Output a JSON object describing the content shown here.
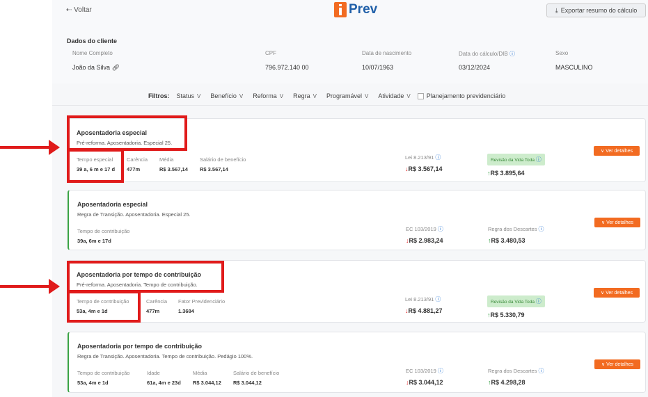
{
  "header": {
    "back_label": "Voltar",
    "logo_text": "Prev",
    "export_label": "Exportar resumo do cálculo"
  },
  "client": {
    "section_title": "Dados do cliente",
    "fields": [
      {
        "label": "Nome Completo",
        "value": "João da Silva"
      },
      {
        "label": "CPF",
        "value": "796.972.140 00"
      },
      {
        "label": "Data de nascimento",
        "value": "10/07/1963"
      },
      {
        "label": "Data do cálculo/DIB",
        "value": "03/12/2024"
      },
      {
        "label": "Sexo",
        "value": "MASCULINO"
      }
    ]
  },
  "filters": {
    "label": "Filtros:",
    "items": [
      "Status",
      "Benefício",
      "Reforma",
      "Regra",
      "Programável",
      "Atividade"
    ],
    "checkbox_label": "Planejamento previdenciário",
    "checkbox_checked": false
  },
  "cards": [
    {
      "title": "Aposentadoria especial",
      "subtitle": "Pré-reforma. Aposentadoria. Especial 25.",
      "fields": [
        {
          "label": "Tempo especial",
          "value": "39 a, 6 m e 17 d"
        },
        {
          "label": "Carência",
          "value": "477m"
        },
        {
          "label": "Média",
          "value": "R$ 3.567,14"
        },
        {
          "label": "Salário de benefício",
          "value": "R$ 3.567,14"
        }
      ],
      "rule1_label": "Lei 8.213/91",
      "rule1_value": "R$ 3.567,14",
      "rule2_label": "Revisão da Vida Toda",
      "rule2_value": "R$ 3.895,64",
      "button": "Ver detalhes"
    },
    {
      "title": "Aposentadoria especial",
      "subtitle": "Regra de Transição. Aposentadoria. Especial 25.",
      "fields": [
        {
          "label": "Tempo de contribuição",
          "value": "39a, 6m e 17d"
        }
      ],
      "rule1_label": "EC 103/2019",
      "rule1_value": "R$ 2.983,24",
      "rule2_label": "Regra dos Descartes",
      "rule2_value": "R$ 3.480,53",
      "button": "Ver detalhes"
    },
    {
      "title": "Aposentadoria por tempo de contribuição",
      "subtitle": "Pré-reforma. Aposentadoria. Tempo de contribuição.",
      "fields": [
        {
          "label": "Tempo de contribuição",
          "value": "53a, 4m e 1d"
        },
        {
          "label": "Carência",
          "value": "477m"
        },
        {
          "label": "Fator Previdenciário",
          "value": "1.3684"
        }
      ],
      "rule1_label": "Lei 8.213/91",
      "rule1_value": "R$ 4.881,27",
      "rule2_label": "Revisão da Vida Toda",
      "rule2_value": "R$ 5.330,79",
      "button": "Ver detalhes"
    },
    {
      "title": "Aposentadoria por tempo de contribuição",
      "subtitle": "Regra de Transição. Aposentadoria. Tempo de contribuição. Pedágio 100%.",
      "fields": [
        {
          "label": "Tempo de contribuição",
          "value": "53a, 4m e 1d"
        },
        {
          "label": "Idade",
          "value": "61a, 4m e 23d"
        },
        {
          "label": "Média",
          "value": "R$ 3.044,12"
        },
        {
          "label": "Salário de benefício",
          "value": "R$ 3.044,12"
        }
      ],
      "rule1_label": "EC 103/2019",
      "rule1_value": "R$ 3.044,12",
      "rule2_label": "Regra dos Descartes",
      "rule2_value": "R$ 4.298,28",
      "button": "Ver detalhes"
    }
  ],
  "colors": {
    "accent": "#f26b21",
    "brand": "#1f5fa8",
    "annotation": "#e01b1b",
    "up": "#2a9a3a",
    "down": "#e02020"
  }
}
